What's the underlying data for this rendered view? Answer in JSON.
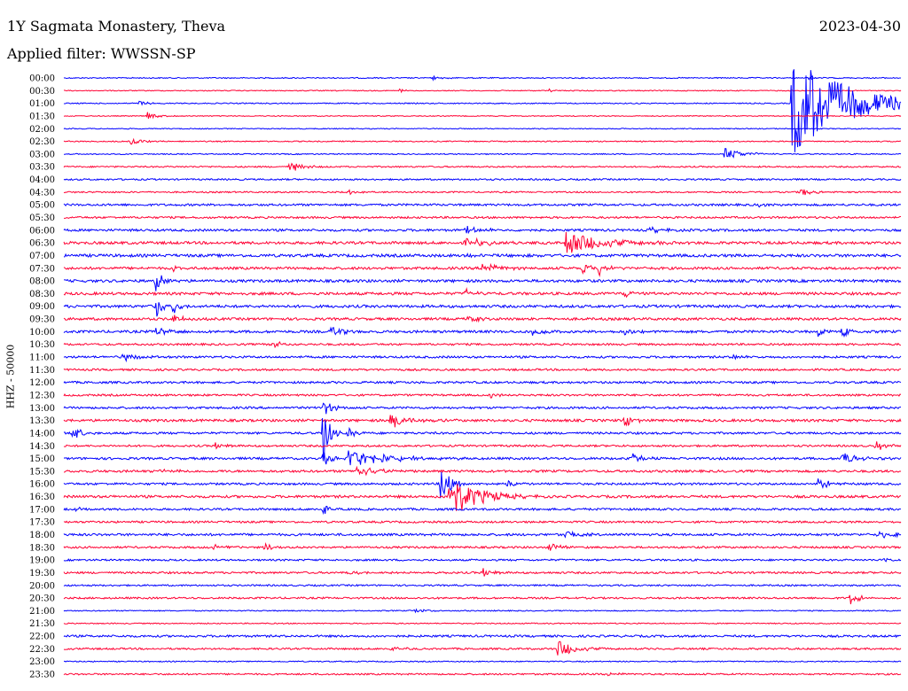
{
  "header": {
    "station": "1Y Sagmata Monastery, Theva",
    "date": "2023-04-30",
    "filter": "Applied filter: WWSSN-SP"
  },
  "colors": {
    "even": "#0000ff",
    "odd": "#ff0033"
  },
  "chart_data": {
    "type": "line",
    "title": "1Y Sagmata Monastery, Theva",
    "ylabel": "HHZ - 50000",
    "legend": "none",
    "grid": false,
    "rows": [
      {
        "label": "00:00",
        "noise": 0.6,
        "events": [
          {
            "t": 0.44,
            "amp": 3,
            "dur": 0.01
          },
          {
            "t": 0.89,
            "amp": 2,
            "dur": 0.008
          }
        ]
      },
      {
        "label": "00:30",
        "noise": 0.5,
        "events": [
          {
            "t": 0.4,
            "amp": 2.5,
            "dur": 0.008
          },
          {
            "t": 0.58,
            "amp": 1.5,
            "dur": 0.006
          }
        ]
      },
      {
        "label": "01:00",
        "noise": 0.6,
        "events": [
          {
            "t": 0.87,
            "amp": 60,
            "dur": 0.06
          },
          {
            "t": 0.09,
            "amp": 3,
            "dur": 0.01
          }
        ]
      },
      {
        "label": "01:30",
        "noise": 0.5,
        "events": [
          {
            "t": 0.1,
            "amp": 5,
            "dur": 0.01
          }
        ]
      },
      {
        "label": "02:00",
        "noise": 0.5,
        "events": []
      },
      {
        "label": "02:30",
        "noise": 0.6,
        "events": [
          {
            "t": 0.08,
            "amp": 4,
            "dur": 0.015
          }
        ]
      },
      {
        "label": "03:00",
        "noise": 0.6,
        "events": [
          {
            "t": 0.79,
            "amp": 7,
            "dur": 0.02
          }
        ]
      },
      {
        "label": "03:30",
        "noise": 0.8,
        "events": [
          {
            "t": 0.27,
            "amp": 6,
            "dur": 0.015
          }
        ]
      },
      {
        "label": "04:00",
        "noise": 0.9,
        "events": []
      },
      {
        "label": "04:30",
        "noise": 0.8,
        "events": [
          {
            "t": 0.88,
            "amp": 5,
            "dur": 0.012
          },
          {
            "t": 0.34,
            "amp": 3,
            "dur": 0.02
          }
        ]
      },
      {
        "label": "05:00",
        "noise": 1.2,
        "events": [
          {
            "t": 0.83,
            "amp": 2,
            "dur": 0.008
          }
        ]
      },
      {
        "label": "05:30",
        "noise": 1.1,
        "events": []
      },
      {
        "label": "06:00",
        "noise": 1.3,
        "events": [
          {
            "t": 0.48,
            "amp": 4,
            "dur": 0.02
          },
          {
            "t": 0.7,
            "amp": 3,
            "dur": 0.02
          }
        ]
      },
      {
        "label": "06:30",
        "noise": 1.5,
        "events": [
          {
            "t": 0.48,
            "amp": 7,
            "dur": 0.02
          },
          {
            "t": 0.6,
            "amp": 14,
            "dur": 0.04
          }
        ]
      },
      {
        "label": "07:00",
        "noise": 1.6,
        "events": [
          {
            "t": 0.48,
            "amp": 3,
            "dur": 0.02
          }
        ]
      },
      {
        "label": "07:30",
        "noise": 1.4,
        "events": [
          {
            "t": 0.5,
            "amp": 8,
            "dur": 0.015
          },
          {
            "t": 0.62,
            "amp": 9,
            "dur": 0.01
          },
          {
            "t": 0.64,
            "amp": 9,
            "dur": 0.01
          },
          {
            "t": 0.13,
            "amp": 3,
            "dur": 0.01
          }
        ]
      },
      {
        "label": "08:00",
        "noise": 1.5,
        "events": [
          {
            "t": 0.11,
            "amp": 12,
            "dur": 0.008
          }
        ]
      },
      {
        "label": "08:30",
        "noise": 1.5,
        "events": [
          {
            "t": 0.48,
            "amp": 6,
            "dur": 0.01
          },
          {
            "t": 0.67,
            "amp": 5,
            "dur": 0.01
          }
        ]
      },
      {
        "label": "09:00",
        "noise": 1.5,
        "events": [
          {
            "t": 0.11,
            "amp": 14,
            "dur": 0.008
          },
          {
            "t": 0.13,
            "amp": 10,
            "dur": 0.008
          }
        ]
      },
      {
        "label": "09:30",
        "noise": 1.4,
        "events": [
          {
            "t": 0.13,
            "amp": 5,
            "dur": 0.01
          },
          {
            "t": 0.48,
            "amp": 3,
            "dur": 0.02
          }
        ]
      },
      {
        "label": "10:00",
        "noise": 1.4,
        "events": [
          {
            "t": 0.11,
            "amp": 5,
            "dur": 0.015
          },
          {
            "t": 0.32,
            "amp": 8,
            "dur": 0.01
          },
          {
            "t": 0.56,
            "amp": 8,
            "dur": 0.012
          },
          {
            "t": 0.9,
            "amp": 10,
            "dur": 0.006
          },
          {
            "t": 0.93,
            "amp": 12,
            "dur": 0.006
          },
          {
            "t": 0.67,
            "amp": 5,
            "dur": 0.01
          }
        ]
      },
      {
        "label": "10:30",
        "noise": 1.1,
        "events": [
          {
            "t": 0.25,
            "amp": 5,
            "dur": 0.01
          }
        ]
      },
      {
        "label": "11:00",
        "noise": 1.2,
        "events": [
          {
            "t": 0.07,
            "amp": 5,
            "dur": 0.015
          },
          {
            "t": 0.8,
            "amp": 4,
            "dur": 0.008
          }
        ]
      },
      {
        "label": "11:30",
        "noise": 1.1,
        "events": []
      },
      {
        "label": "12:00",
        "noise": 1.2,
        "events": []
      },
      {
        "label": "12:30",
        "noise": 1.1,
        "events": [
          {
            "t": 0.51,
            "amp": 3,
            "dur": 0.01
          }
        ]
      },
      {
        "label": "13:00",
        "noise": 1.2,
        "events": [
          {
            "t": 0.31,
            "amp": 12,
            "dur": 0.008
          }
        ]
      },
      {
        "label": "13:30",
        "noise": 1.4,
        "events": [
          {
            "t": 0.39,
            "amp": 9,
            "dur": 0.02
          },
          {
            "t": 0.67,
            "amp": 8,
            "dur": 0.01
          }
        ]
      },
      {
        "label": "14:00",
        "noise": 1.2,
        "events": [
          {
            "t": 0.01,
            "amp": 9,
            "dur": 0.01
          },
          {
            "t": 0.31,
            "amp": 40,
            "dur": 0.006
          },
          {
            "t": 0.34,
            "amp": 6,
            "dur": 0.008
          }
        ]
      },
      {
        "label": "14:30",
        "noise": 1.1,
        "events": [
          {
            "t": 0.18,
            "amp": 5,
            "dur": 0.01
          },
          {
            "t": 0.97,
            "amp": 6,
            "dur": 0.01
          }
        ]
      },
      {
        "label": "15:00",
        "noise": 1.3,
        "events": [
          {
            "t": 0.31,
            "amp": 8,
            "dur": 0.01
          },
          {
            "t": 0.34,
            "amp": 12,
            "dur": 0.04
          },
          {
            "t": 0.68,
            "amp": 6,
            "dur": 0.01
          },
          {
            "t": 0.93,
            "amp": 8,
            "dur": 0.015
          }
        ]
      },
      {
        "label": "15:30",
        "noise": 1.3,
        "events": [
          {
            "t": 0.35,
            "amp": 9,
            "dur": 0.02
          },
          {
            "t": 0.11,
            "amp": 2,
            "dur": 0.03
          }
        ]
      },
      {
        "label": "16:00",
        "noise": 1.2,
        "events": [
          {
            "t": 0.53,
            "amp": 4,
            "dur": 0.01
          },
          {
            "t": 0.9,
            "amp": 6,
            "dur": 0.015
          },
          {
            "t": 0.45,
            "amp": 25,
            "dur": 0.01
          }
        ]
      },
      {
        "label": "16:30",
        "noise": 1.4,
        "events": [
          {
            "t": 0.46,
            "amp": 26,
            "dur": 0.03
          }
        ]
      },
      {
        "label": "17:00",
        "noise": 1.2,
        "events": [
          {
            "t": 0.01,
            "amp": 3,
            "dur": 0.01
          },
          {
            "t": 0.31,
            "amp": 9,
            "dur": 0.005
          }
        ]
      },
      {
        "label": "17:30",
        "noise": 1.1,
        "events": []
      },
      {
        "label": "18:00",
        "noise": 1.3,
        "events": [
          {
            "t": 0.6,
            "amp": 5,
            "dur": 0.015
          },
          {
            "t": 0.97,
            "amp": 3,
            "dur": 0.04
          }
        ]
      },
      {
        "label": "18:30",
        "noise": 1.1,
        "events": [
          {
            "t": 0.18,
            "amp": 5,
            "dur": 0.01
          },
          {
            "t": 0.24,
            "amp": 5,
            "dur": 0.01
          },
          {
            "t": 0.58,
            "amp": 5,
            "dur": 0.015
          }
        ]
      },
      {
        "label": "19:00",
        "noise": 1.0,
        "events": [
          {
            "t": 0.98,
            "amp": 3,
            "dur": 0.01
          }
        ]
      },
      {
        "label": "19:30",
        "noise": 1.1,
        "events": [
          {
            "t": 0.5,
            "amp": 7,
            "dur": 0.01
          },
          {
            "t": 0.34,
            "amp": 2,
            "dur": 0.03
          }
        ]
      },
      {
        "label": "20:00",
        "noise": 0.9,
        "events": []
      },
      {
        "label": "20:30",
        "noise": 1.0,
        "events": [
          {
            "t": 0.94,
            "amp": 7,
            "dur": 0.01
          }
        ]
      },
      {
        "label": "21:00",
        "noise": 0.6,
        "events": [
          {
            "t": 0.42,
            "amp": 3,
            "dur": 0.012
          }
        ]
      },
      {
        "label": "21:30",
        "noise": 0.6,
        "events": []
      },
      {
        "label": "22:00",
        "noise": 1.2,
        "events": []
      },
      {
        "label": "22:30",
        "noise": 1.0,
        "events": [
          {
            "t": 0.39,
            "amp": 3,
            "dur": 0.012
          },
          {
            "t": 0.59,
            "amp": 10,
            "dur": 0.02
          }
        ]
      },
      {
        "label": "23:00",
        "noise": 0.6,
        "events": []
      },
      {
        "label": "23:30",
        "noise": 0.9,
        "events": [
          {
            "t": 0.65,
            "amp": 4,
            "dur": 0.01
          }
        ]
      }
    ]
  }
}
